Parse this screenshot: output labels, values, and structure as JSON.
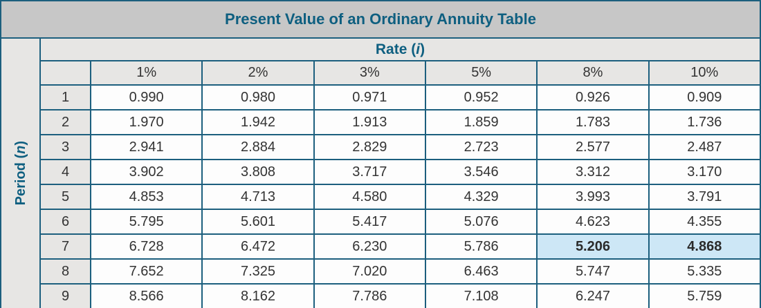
{
  "title": "Present Value of an Ordinary Annuity Table",
  "rate_header": {
    "prefix": "Rate (",
    "variable": "i",
    "suffix": ")"
  },
  "period_header": {
    "prefix": "Period (",
    "variable": "n",
    "suffix": ")"
  },
  "colors": {
    "border": "#1C5F7E",
    "title_bg": "#C7C7C7",
    "header_bg": "#E7E6E4",
    "cell_bg": "#FDFDFD",
    "highlight_bg": "#CDE7F6",
    "heading_text": "#0E5F80",
    "body_text": "#333333"
  },
  "chart_data": {
    "type": "table",
    "title": "Present Value of an Ordinary Annuity Table",
    "column_group_label": "Rate (i)",
    "row_group_label": "Period (n)",
    "columns": [
      "1%",
      "2%",
      "3%",
      "5%",
      "8%",
      "10%"
    ],
    "rows": [
      {
        "period": "1",
        "values": [
          "0.990",
          "0.980",
          "0.971",
          "0.952",
          "0.926",
          "0.909"
        ]
      },
      {
        "period": "2",
        "values": [
          "1.970",
          "1.942",
          "1.913",
          "1.859",
          "1.783",
          "1.736"
        ]
      },
      {
        "period": "3",
        "values": [
          "2.941",
          "2.884",
          "2.829",
          "2.723",
          "2.577",
          "2.487"
        ]
      },
      {
        "period": "4",
        "values": [
          "3.902",
          "3.808",
          "3.717",
          "3.546",
          "3.312",
          "3.170"
        ]
      },
      {
        "period": "5",
        "values": [
          "4.853",
          "4.713",
          "4.580",
          "4.329",
          "3.993",
          "3.791"
        ]
      },
      {
        "period": "6",
        "values": [
          "5.795",
          "5.601",
          "5.417",
          "5.076",
          "4.623",
          "4.355"
        ]
      },
      {
        "period": "7",
        "values": [
          "6.728",
          "6.472",
          "6.230",
          "5.786",
          "5.206",
          "4.868"
        ]
      },
      {
        "period": "8",
        "values": [
          "7.652",
          "7.325",
          "7.020",
          "6.463",
          "5.747",
          "5.335"
        ]
      },
      {
        "period": "9",
        "values": [
          "8.566",
          "8.162",
          "7.786",
          "7.108",
          "6.247",
          "5.759"
        ]
      }
    ],
    "highlighted_cells": [
      {
        "period": "7",
        "column": "8%",
        "value": "5.206"
      },
      {
        "period": "7",
        "column": "10%",
        "value": "4.868"
      }
    ]
  }
}
